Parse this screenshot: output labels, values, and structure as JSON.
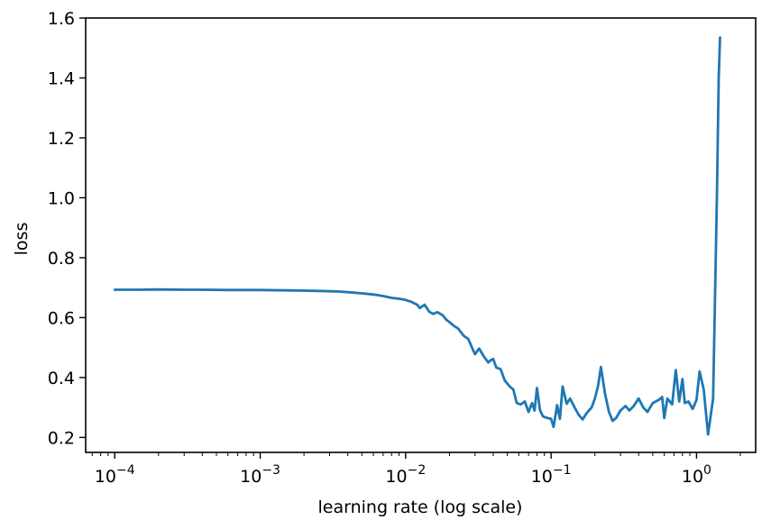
{
  "chart_data": {
    "type": "line",
    "xscale": "log",
    "xlabel": "learning rate (log scale)",
    "ylabel": "loss",
    "xlim": [
      6.31e-05,
      2.55
    ],
    "ylim": [
      0.15,
      1.6
    ],
    "grid": false,
    "x_ticks": [
      {
        "value": 0.0001,
        "base": "10",
        "exp": "−4"
      },
      {
        "value": 0.001,
        "base": "10",
        "exp": "−3"
      },
      {
        "value": 0.01,
        "base": "10",
        "exp": "−2"
      },
      {
        "value": 0.1,
        "base": "10",
        "exp": "−1"
      },
      {
        "value": 1,
        "base": "10",
        "exp": "0"
      }
    ],
    "y_ticks": [
      {
        "value": 0.2,
        "label": "0.2"
      },
      {
        "value": 0.4,
        "label": "0.4"
      },
      {
        "value": 0.6,
        "label": "0.6"
      },
      {
        "value": 0.8,
        "label": "0.8"
      },
      {
        "value": 1.0,
        "label": "1.0"
      },
      {
        "value": 1.2,
        "label": "1.2"
      },
      {
        "value": 1.4,
        "label": "1.4"
      },
      {
        "value": 1.6,
        "label": "1.6"
      }
    ],
    "series": [
      {
        "color": "#1f77b4",
        "points": [
          [
            0.0001,
            0.693
          ],
          [
            0.00015,
            0.693
          ],
          [
            0.0002,
            0.694
          ],
          [
            0.0003,
            0.693
          ],
          [
            0.0004,
            0.693
          ],
          [
            0.0006,
            0.692
          ],
          [
            0.0008,
            0.692
          ],
          [
            0.001,
            0.692
          ],
          [
            0.0015,
            0.691
          ],
          [
            0.002,
            0.69
          ],
          [
            0.0025,
            0.689
          ],
          [
            0.003,
            0.688
          ],
          [
            0.0035,
            0.687
          ],
          [
            0.004,
            0.685
          ],
          [
            0.005,
            0.681
          ],
          [
            0.006,
            0.677
          ],
          [
            0.007,
            0.672
          ],
          [
            0.008,
            0.666
          ],
          [
            0.009,
            0.663
          ],
          [
            0.01,
            0.659
          ],
          [
            0.011,
            0.652
          ],
          [
            0.012,
            0.643
          ],
          [
            0.0125,
            0.632
          ],
          [
            0.0135,
            0.643
          ],
          [
            0.0145,
            0.62
          ],
          [
            0.0155,
            0.612
          ],
          [
            0.0165,
            0.618
          ],
          [
            0.018,
            0.608
          ],
          [
            0.019,
            0.593
          ],
          [
            0.02,
            0.585
          ],
          [
            0.0215,
            0.572
          ],
          [
            0.023,
            0.563
          ],
          [
            0.025,
            0.54
          ],
          [
            0.027,
            0.528
          ],
          [
            0.029,
            0.493
          ],
          [
            0.03,
            0.478
          ],
          [
            0.032,
            0.497
          ],
          [
            0.0345,
            0.47
          ],
          [
            0.037,
            0.45
          ],
          [
            0.0385,
            0.458
          ],
          [
            0.04,
            0.462
          ],
          [
            0.042,
            0.433
          ],
          [
            0.045,
            0.428
          ],
          [
            0.048,
            0.39
          ],
          [
            0.052,
            0.37
          ],
          [
            0.055,
            0.36
          ],
          [
            0.058,
            0.315
          ],
          [
            0.062,
            0.31
          ],
          [
            0.066,
            0.32
          ],
          [
            0.07,
            0.285
          ],
          [
            0.074,
            0.315
          ],
          [
            0.077,
            0.29
          ],
          [
            0.08,
            0.365
          ],
          [
            0.084,
            0.29
          ],
          [
            0.088,
            0.27
          ],
          [
            0.094,
            0.265
          ],
          [
            0.1,
            0.262
          ],
          [
            0.104,
            0.235
          ],
          [
            0.11,
            0.308
          ],
          [
            0.115,
            0.262
          ],
          [
            0.12,
            0.37
          ],
          [
            0.128,
            0.312
          ],
          [
            0.135,
            0.33
          ],
          [
            0.145,
            0.3
          ],
          [
            0.155,
            0.275
          ],
          [
            0.165,
            0.26
          ],
          [
            0.175,
            0.28
          ],
          [
            0.19,
            0.3
          ],
          [
            0.2,
            0.33
          ],
          [
            0.21,
            0.37
          ],
          [
            0.22,
            0.435
          ],
          [
            0.235,
            0.345
          ],
          [
            0.25,
            0.285
          ],
          [
            0.265,
            0.255
          ],
          [
            0.28,
            0.265
          ],
          [
            0.3,
            0.29
          ],
          [
            0.325,
            0.305
          ],
          [
            0.345,
            0.29
          ],
          [
            0.37,
            0.305
          ],
          [
            0.4,
            0.33
          ],
          [
            0.43,
            0.3
          ],
          [
            0.46,
            0.285
          ],
          [
            0.5,
            0.315
          ],
          [
            0.55,
            0.325
          ],
          [
            0.58,
            0.335
          ],
          [
            0.6,
            0.265
          ],
          [
            0.63,
            0.33
          ],
          [
            0.68,
            0.31
          ],
          [
            0.72,
            0.425
          ],
          [
            0.76,
            0.32
          ],
          [
            0.8,
            0.395
          ],
          [
            0.83,
            0.315
          ],
          [
            0.88,
            0.32
          ],
          [
            0.94,
            0.295
          ],
          [
            1.0,
            0.325
          ],
          [
            1.05,
            0.42
          ],
          [
            1.12,
            0.36
          ],
          [
            1.2,
            0.21
          ],
          [
            1.3,
            0.33
          ],
          [
            1.38,
            1.0
          ],
          [
            1.42,
            1.4
          ],
          [
            1.45,
            1.535
          ]
        ]
      }
    ]
  }
}
